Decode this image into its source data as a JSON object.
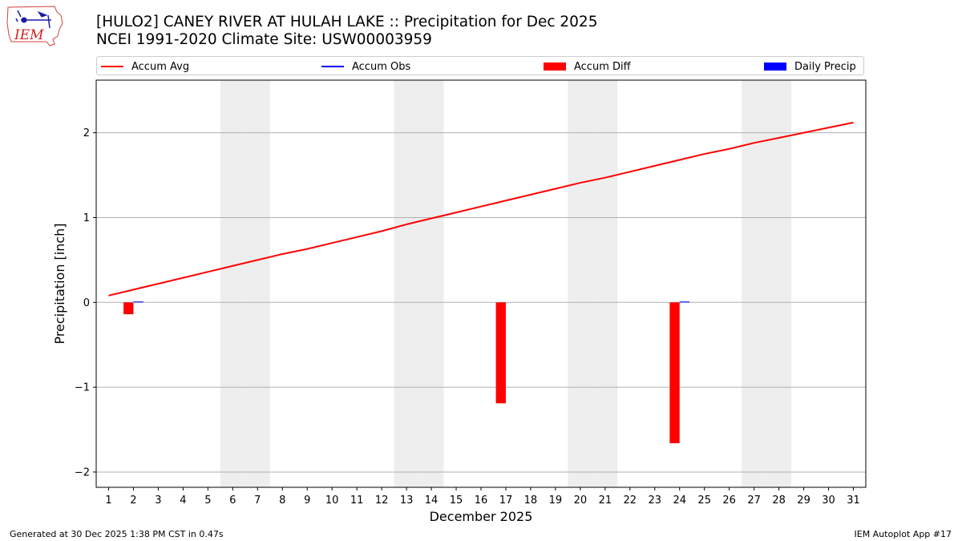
{
  "title": "[HULO2] CANEY RIVER  AT HULAH LAKE :: Precipitation for Dec 2025",
  "subtitle": "NCEI 1991-2020 Climate Site: USW00003959",
  "logo_text": "IEM",
  "footer_left": "Generated at 30 Dec 2025 1:38 PM CST in 0.47s",
  "footer_right": "IEM Autoplot App #17",
  "legend": [
    {
      "label": "Accum Avg",
      "kind": "line",
      "color": "#ff0000"
    },
    {
      "label": "Accum Obs",
      "kind": "line",
      "color": "#0000ff"
    },
    {
      "label": "Accum Diff",
      "kind": "box",
      "color": "#ff0000"
    },
    {
      "label": "Daily Precip",
      "kind": "box",
      "color": "#0000ff"
    }
  ],
  "chart_data": {
    "type": "bar",
    "xlabel": "December 2025",
    "ylabel": "Precipitation [inch]",
    "xlim": [
      0.5,
      31.5
    ],
    "ylim": [
      -2.18,
      2.62
    ],
    "yticks": [
      -2,
      -1,
      0,
      1,
      2
    ],
    "ytick_labels": [
      "−2",
      "−1",
      "0",
      "1",
      "2"
    ],
    "days": [
      1,
      2,
      3,
      4,
      5,
      6,
      7,
      8,
      9,
      10,
      11,
      12,
      13,
      14,
      15,
      16,
      17,
      18,
      19,
      20,
      21,
      22,
      23,
      24,
      25,
      26,
      27,
      28,
      29,
      30,
      31
    ],
    "grid": "horizontal",
    "weekend_days": [
      6,
      7,
      13,
      14,
      20,
      21,
      27,
      28
    ],
    "weekend_color": "#eeeeee",
    "series": [
      {
        "name": "Accum Avg",
        "type": "line",
        "color": "#ff0000",
        "values": [
          0.08,
          0.15,
          0.22,
          0.29,
          0.36,
          0.43,
          0.5,
          0.57,
          0.63,
          0.7,
          0.77,
          0.84,
          0.92,
          0.99,
          1.06,
          1.13,
          1.2,
          1.27,
          1.34,
          1.41,
          1.47,
          1.54,
          1.61,
          1.68,
          1.75,
          1.81,
          1.88,
          1.94,
          2.0,
          2.06,
          2.12
        ]
      },
      {
        "name": "Accum Diff",
        "type": "bar",
        "color": "#ff0000",
        "days": [
          2,
          17,
          24
        ],
        "values": [
          -0.14,
          -1.19,
          -1.66
        ]
      },
      {
        "name": "Daily Precip",
        "type": "bar",
        "color": "#0000ff",
        "days": [
          2,
          24
        ],
        "values": [
          0.01,
          0.01
        ]
      }
    ]
  }
}
